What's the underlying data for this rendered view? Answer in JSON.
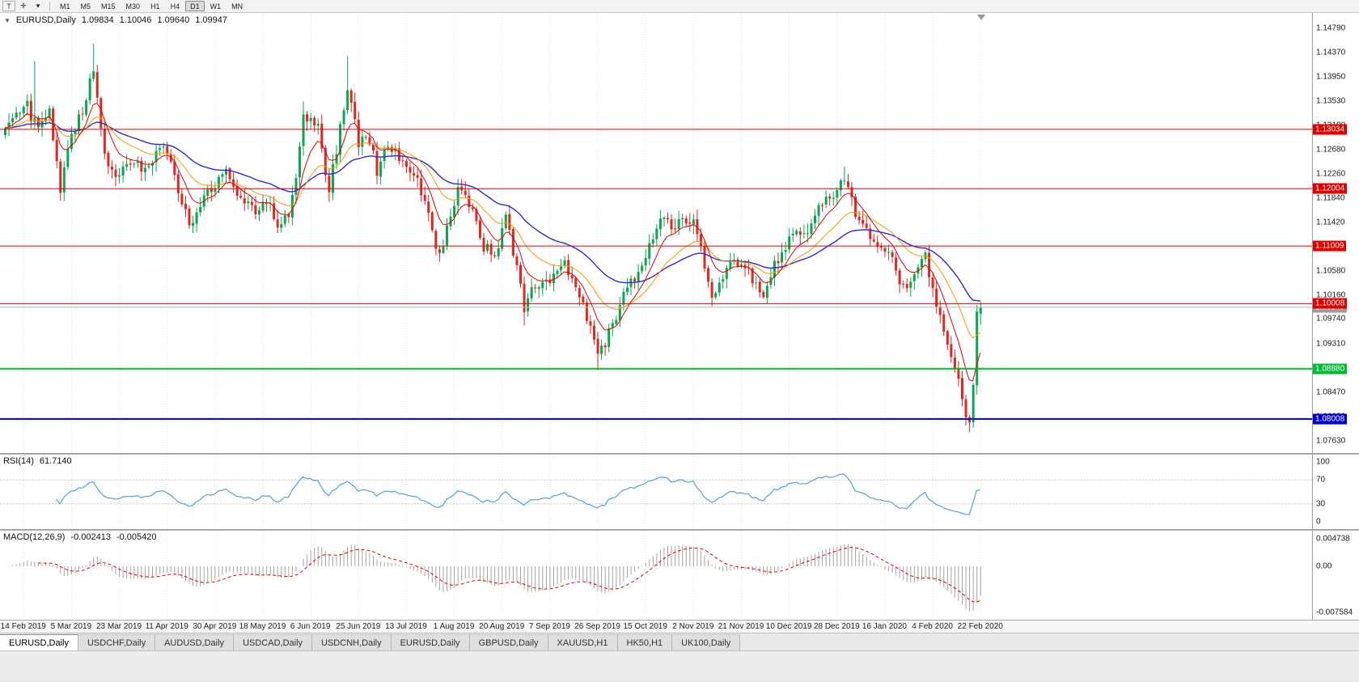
{
  "toolbar": {
    "pointer_icon": "T",
    "crosshair_icon": "✛",
    "dropdown_icon": "▾",
    "timeframes": [
      "M1",
      "M5",
      "M15",
      "M30",
      "H1",
      "H4",
      "D1",
      "W1",
      "MN"
    ],
    "active_timeframe": "D1"
  },
  "chart": {
    "collapse_arrow": "▼",
    "title_symbol": "EURUSD,Daily",
    "quote": {
      "open": "1.09834",
      "high": "1.10046",
      "low": "1.09640",
      "close": "1.09947"
    },
    "price_min": 1.075,
    "price_max": 1.1497,
    "price_axis_labels": [
      "1.14790",
      "1.14370",
      "1.13950",
      "1.13530",
      "1.13100",
      "1.12680",
      "1.12260",
      "1.11840",
      "1.11420",
      "1.11000",
      "1.10580",
      "1.10160",
      "1.09740",
      "1.09310",
      "1.08880",
      "1.08470",
      "1.08050",
      "1.07630"
    ],
    "levels": [
      {
        "value": 1.13034,
        "label": "1.13034",
        "color": "#e00000",
        "width": 1
      },
      {
        "value": 1.12004,
        "label": "1.12004",
        "color": "#e00000",
        "width": 1
      },
      {
        "value": 1.11009,
        "label": "1.11009",
        "color": "#e00000",
        "width": 1
      },
      {
        "value": 1.10008,
        "label": "1.10008",
        "color": "#e00000",
        "width": 1
      },
      {
        "value": 1.0888,
        "label": "1.08880",
        "color": "#00bb33",
        "width": 2
      },
      {
        "value": 1.08008,
        "label": "1.08008",
        "color": "#0000cc",
        "width": 2
      }
    ],
    "current_price": {
      "value": 1.09947,
      "label": "1.09947",
      "line_color": "#b8b8b8",
      "tag_color": "#9c9c9c"
    },
    "date_labels": [
      "14 Feb 2019",
      "5 Mar 2019",
      "23 Mar 2019",
      "11 Apr 2019",
      "30 Apr 2019",
      "18 May 2019",
      "6 Jun 2019",
      "25 Jun 2019",
      "13 Jul 2019",
      "1 Aug 2019",
      "20 Aug 2019",
      "7 Sep 2019",
      "26 Sep 2019",
      "15 Oct 2019",
      "2 Nov 2019",
      "21 Nov 2019",
      "10 Dec 2019",
      "28 Dec 2019",
      "16 Jan 2020",
      "4 Feb 2020",
      "22 Feb 2020"
    ],
    "colors": {
      "candle_up": "#0aa651",
      "candle_down": "#e3261f",
      "grid": "#e0e0e0",
      "ma_fast": "#e80000",
      "ma_medium": "#ff9800",
      "ma_slow": "#2b2bd4"
    }
  },
  "chart_data": {
    "type": "candlestick",
    "symbol": "EURUSD",
    "timeframe": "Daily",
    "candle_count": 266,
    "waypoints": [
      [
        0,
        1.1295
      ],
      [
        3,
        1.1325
      ],
      [
        6,
        1.1342
      ],
      [
        9,
        1.13
      ],
      [
        12,
        1.133
      ],
      [
        15,
        1.1195
      ],
      [
        18,
        1.1298
      ],
      [
        21,
        1.1335
      ],
      [
        24,
        1.141
      ],
      [
        27,
        1.1262
      ],
      [
        30,
        1.122
      ],
      [
        34,
        1.1252
      ],
      [
        38,
        1.1228
      ],
      [
        42,
        1.128
      ],
      [
        45,
        1.1238
      ],
      [
        50,
        1.1135
      ],
      [
        53,
        1.1172
      ],
      [
        56,
        1.12
      ],
      [
        60,
        1.1232
      ],
      [
        64,
        1.118
      ],
      [
        68,
        1.116
      ],
      [
        71,
        1.1182
      ],
      [
        74,
        1.1132
      ],
      [
        77,
        1.116
      ],
      [
        79,
        1.122
      ],
      [
        81,
        1.133
      ],
      [
        85,
        1.1308
      ],
      [
        88,
        1.1197
      ],
      [
        91,
        1.1305
      ],
      [
        93,
        1.137
      ],
      [
        96,
        1.1282
      ],
      [
        99,
        1.1288
      ],
      [
        101,
        1.123
      ],
      [
        104,
        1.1272
      ],
      [
        108,
        1.1252
      ],
      [
        112,
        1.1212
      ],
      [
        115,
        1.1152
      ],
      [
        118,
        1.108
      ],
      [
        121,
        1.1152
      ],
      [
        123,
        1.1202
      ],
      [
        127,
        1.1172
      ],
      [
        130,
        1.1102
      ],
      [
        133,
        1.1088
      ],
      [
        136,
        1.1148
      ],
      [
        139,
        1.1062
      ],
      [
        141,
        1.0992
      ],
      [
        144,
        1.1032
      ],
      [
        148,
        1.1045
      ],
      [
        152,
        1.1065
      ],
      [
        156,
        1.1018
      ],
      [
        159,
        1.0962
      ],
      [
        161,
        1.0906
      ],
      [
        163,
        1.0935
      ],
      [
        166,
        1.0982
      ],
      [
        169,
        1.1032
      ],
      [
        172,
        1.1045
      ],
      [
        175,
        1.1102
      ],
      [
        178,
        1.1152
      ],
      [
        181,
        1.1132
      ],
      [
        184,
        1.1152
      ],
      [
        187,
        1.114
      ],
      [
        190,
        1.1072
      ],
      [
        192,
        1.1018
      ],
      [
        195,
        1.1052
      ],
      [
        198,
        1.1072
      ],
      [
        201,
        1.1062
      ],
      [
        204,
        1.1032
      ],
      [
        206,
        1.1018
      ],
      [
        209,
        1.1072
      ],
      [
        212,
        1.1102
      ],
      [
        215,
        1.1132
      ],
      [
        218,
        1.1122
      ],
      [
        221,
        1.1175
      ],
      [
        225,
        1.1192
      ],
      [
        228,
        1.1212
      ],
      [
        231,
        1.1162
      ],
      [
        234,
        1.1122
      ],
      [
        237,
        1.1102
      ],
      [
        240,
        1.1092
      ],
      [
        243,
        1.1042
      ],
      [
        245,
        1.1025
      ],
      [
        248,
        1.1062
      ],
      [
        250,
        1.1093
      ],
      [
        252,
        1.1022
      ],
      [
        255,
        1.0948
      ],
      [
        258,
        1.0892
      ],
      [
        260,
        1.0832
      ],
      [
        261,
        1.0802
      ],
      [
        262,
        1.0786
      ],
      [
        263,
        1.0855
      ],
      [
        264,
        1.0983
      ],
      [
        265,
        1.09947
      ]
    ],
    "spikes": [
      {
        "i": 8,
        "high": 1.1422
      },
      {
        "i": 24,
        "high": 1.1452
      },
      {
        "i": 81,
        "high": 1.1352
      },
      {
        "i": 93,
        "high": 1.143
      },
      {
        "i": 141,
        "low": 1.0963
      },
      {
        "i": 161,
        "low": 1.0885
      },
      {
        "i": 228,
        "high": 1.1239
      },
      {
        "i": 262,
        "low": 1.0778
      }
    ],
    "last_candle": {
      "open": 1.09834,
      "high": 1.10046,
      "low": 1.0964,
      "close": 1.09947
    },
    "overlays": [
      {
        "name": "ma-fast",
        "color": "#e80000",
        "period": 8
      },
      {
        "name": "ma-medium",
        "color": "#ff9800",
        "period": 20
      },
      {
        "name": "ma-slow",
        "color": "#2b2bd4",
        "period": 42
      }
    ]
  },
  "rsi": {
    "label": "RSI(14)",
    "value": "61.7140",
    "axis": [
      {
        "text": "100",
        "value": 100
      },
      {
        "text": "70",
        "value": 70
      },
      {
        "text": "30",
        "value": 30
      },
      {
        "text": "0",
        "value": 0
      }
    ],
    "dotted_levels": [
      70,
      30
    ],
    "color": "#56a0d3"
  },
  "macd": {
    "label": "MACD(12,26,9)",
    "main_value": "-0.002413",
    "signal_value": "-0.005420",
    "axis_top": "0.004738",
    "axis_zero": "0.00",
    "axis_bottom": "-0.007584",
    "range": [
      -0.007584,
      0.004738
    ],
    "histogram_color": "#949494",
    "signal_color": "#e00000"
  },
  "tabs": [
    "EURUSD,Daily",
    "USDCHF,Daily",
    "AUDUSD,Daily",
    "USDCAD,Daily",
    "USDCNH,Daily",
    "EURUSD,Daily",
    "GBPUSD,Daily",
    "XAUUSD,H1",
    "HK50,H1",
    "UK100,Daily"
  ],
  "active_tab_index": 0
}
